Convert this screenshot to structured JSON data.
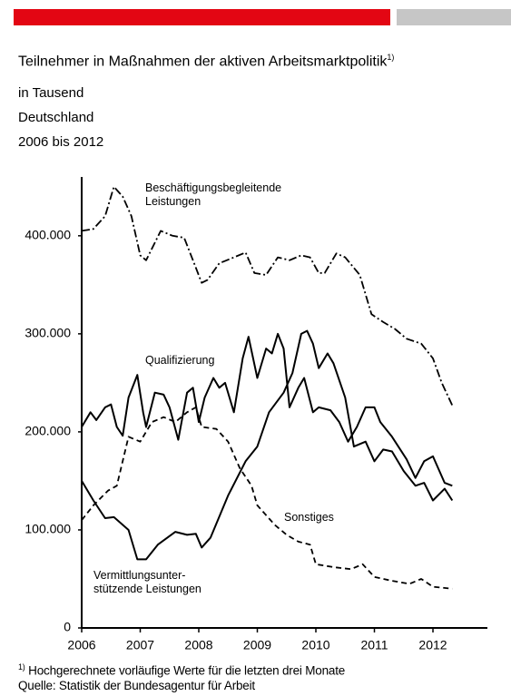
{
  "chart_data": {
    "type": "line",
    "title": "Teilnehmer in Maßnahmen der aktiven Arbeitsmarktpolitik",
    "title_note": "1)",
    "subtitles": [
      "in Tausend",
      "Deutschland",
      "2006 bis 2012"
    ],
    "xlim": [
      2006,
      2012.93
    ],
    "xticks": [
      2006,
      2007,
      2008,
      2009,
      2010,
      2011,
      2012
    ],
    "ylim": [
      0,
      460000
    ],
    "yticks": [
      0,
      {
        "value": 100000,
        "label": "100.000"
      },
      {
        "value": 200000,
        "label": "200.000"
      },
      {
        "value": 300000,
        "label": "300.000"
      },
      {
        "value": 400000,
        "label": "400.000"
      }
    ],
    "series": [
      {
        "name": "Beschäftigungsbegleitende Leistungen",
        "color": "#000000",
        "dash": "dashdot",
        "x": [
          2006,
          2006.2,
          2006.4,
          2006.55,
          2006.7,
          2006.85,
          2007,
          2007.1,
          2007.35,
          2007.55,
          2007.75,
          2007.9,
          2008.05,
          2008.15,
          2008.35,
          2008.6,
          2008.8,
          2008.95,
          2009.15,
          2009.35,
          2009.55,
          2009.75,
          2009.9,
          2010.05,
          2010.15,
          2010.35,
          2010.5,
          2010.75,
          2010.95,
          2011.15,
          2011.35,
          2011.55,
          2011.8,
          2012,
          2012.15,
          2012.33
        ],
        "values": [
          405000,
          407000,
          420000,
          450000,
          440000,
          420000,
          380000,
          375000,
          405000,
          400000,
          398000,
          375000,
          352000,
          355000,
          372000,
          378000,
          383000,
          362000,
          360000,
          378000,
          375000,
          380000,
          378000,
          362000,
          362000,
          382000,
          378000,
          360000,
          320000,
          312000,
          305000,
          295000,
          290000,
          275000,
          250000,
          227000
        ]
      },
      {
        "name": "Qualifizierung",
        "color": "#000000",
        "dash": "solid",
        "x": [
          2006,
          2006.15,
          2006.25,
          2006.4,
          2006.5,
          2006.6,
          2006.7,
          2006.8,
          2006.95,
          2007.05,
          2007.1,
          2007.25,
          2007.4,
          2007.5,
          2007.65,
          2007.8,
          2007.9,
          2008,
          2008.1,
          2008.25,
          2008.35,
          2008.45,
          2008.6,
          2008.75,
          2008.85,
          2009,
          2009.15,
          2009.25,
          2009.35,
          2009.45,
          2009.55,
          2009.7,
          2009.8,
          2009.95,
          2010.05,
          2010.25,
          2010.4,
          2010.55,
          2010.7,
          2010.85,
          2011,
          2011.1,
          2011.3,
          2011.55,
          2011.7,
          2011.85,
          2012,
          2012.2,
          2012.33
        ],
        "values": [
          205000,
          220000,
          212000,
          225000,
          228000,
          205000,
          196000,
          235000,
          258000,
          220000,
          205000,
          240000,
          238000,
          225000,
          192000,
          240000,
          245000,
          210000,
          235000,
          255000,
          245000,
          250000,
          220000,
          275000,
          297000,
          255000,
          285000,
          280000,
          300000,
          285000,
          225000,
          245000,
          255000,
          220000,
          225000,
          222000,
          210000,
          190000,
          205000,
          225000,
          225000,
          210000,
          195000,
          172000,
          153000,
          170000,
          175000,
          148000,
          145000
        ]
      },
      {
        "name": "Sonstiges",
        "color": "#000000",
        "dash": "dashed",
        "x": [
          2006,
          2006.2,
          2006.45,
          2006.6,
          2006.8,
          2007,
          2007.2,
          2007.4,
          2007.6,
          2007.8,
          2007.95,
          2008.05,
          2008.3,
          2008.5,
          2008.7,
          2008.9,
          2009,
          2009.3,
          2009.5,
          2009.7,
          2009.9,
          2010,
          2010.3,
          2010.6,
          2010.8,
          2011,
          2011.3,
          2011.6,
          2011.8,
          2012,
          2012.33
        ],
        "values": [
          110000,
          125000,
          140000,
          145000,
          195000,
          190000,
          210000,
          215000,
          210000,
          220000,
          225000,
          205000,
          203000,
          190000,
          163000,
          145000,
          125000,
          105000,
          95000,
          88000,
          85000,
          65000,
          62000,
          60000,
          65000,
          52000,
          48000,
          45000,
          50000,
          42000,
          40000
        ]
      },
      {
        "name": "Vermittlungsunter-stützende Leistungen",
        "color": "#000000",
        "dash": "solid",
        "x": [
          2006,
          2006.2,
          2006.4,
          2006.55,
          2006.8,
          2006.95,
          2007.1,
          2007.3,
          2007.6,
          2007.8,
          2007.95,
          2008.05,
          2008.2,
          2008.5,
          2008.8,
          2009,
          2009.2,
          2009.45,
          2009.6,
          2009.75,
          2009.85,
          2009.95,
          2010.05,
          2010.2,
          2010.3,
          2010.5,
          2010.65,
          2010.85,
          2011,
          2011.15,
          2011.3,
          2011.5,
          2011.7,
          2011.85,
          2012,
          2012.2,
          2012.33
        ],
        "values": [
          150000,
          130000,
          112000,
          113000,
          100000,
          70000,
          70000,
          85000,
          98000,
          95000,
          96000,
          82000,
          92000,
          135000,
          170000,
          185000,
          220000,
          240000,
          260000,
          300000,
          303000,
          290000,
          265000,
          280000,
          270000,
          235000,
          185000,
          190000,
          170000,
          182000,
          180000,
          160000,
          145000,
          148000,
          130000,
          142000,
          130000
        ]
      }
    ],
    "footnote": {
      "marker": "1)",
      "text": "Hochgerechnete vorläufige Werte für die letzten drei Monate"
    },
    "source": "Quelle: Statistik der Bundesagentur für Arbeit"
  }
}
